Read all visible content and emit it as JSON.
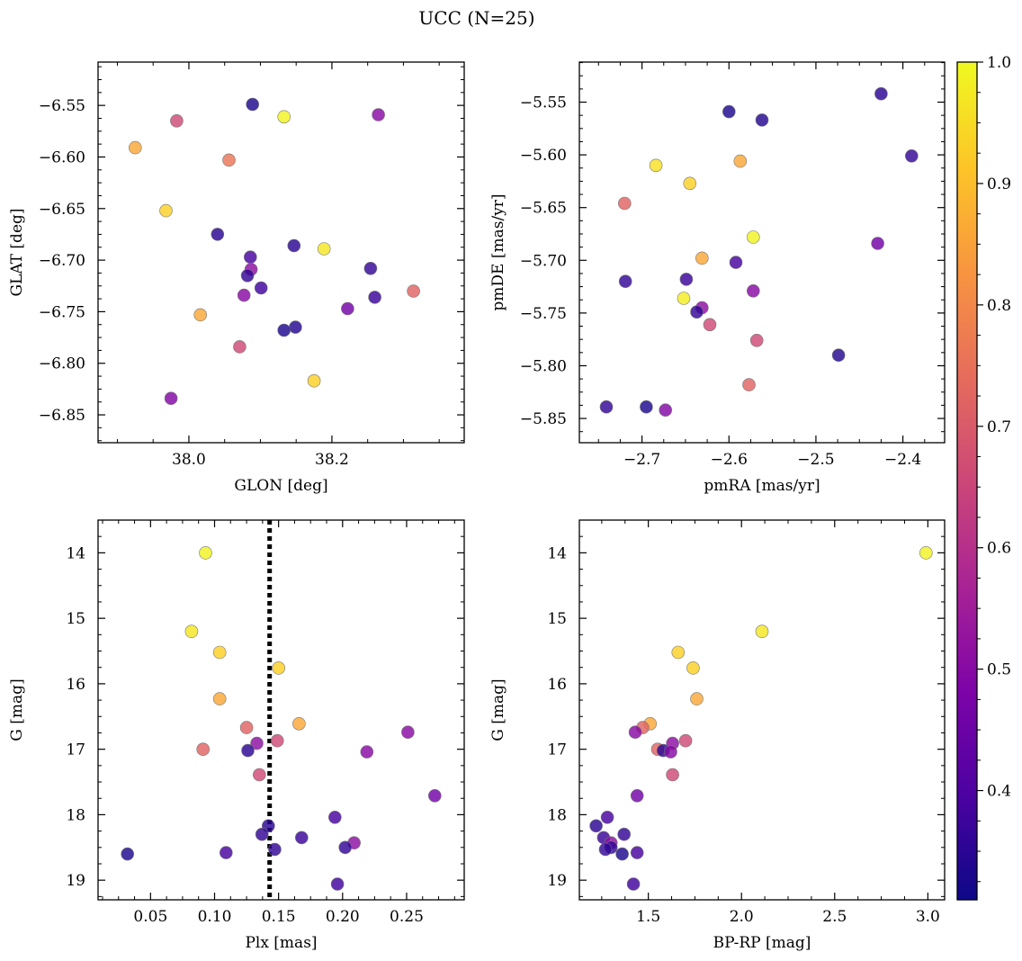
{
  "figure": {
    "title": "UCC (N=25)"
  },
  "colorbar": {
    "colormap": "plasma",
    "min": 0.31,
    "max": 1.0,
    "ticks": [
      0.4,
      0.5,
      0.6,
      0.7,
      0.8,
      0.9,
      1.0
    ],
    "tick_labels": [
      "0.4",
      "0.5",
      "0.6",
      "0.7",
      "0.8",
      "0.9",
      "1.0"
    ]
  },
  "chart_data": [
    {
      "type": "scatter",
      "xlabel": "GLON [deg]",
      "ylabel": "GLAT [deg]",
      "xlim": [
        37.873,
        38.385
      ],
      "ylim": [
        -6.877,
        -6.508
      ],
      "xticks": [
        38.0,
        38.2
      ],
      "xtick_labels": [
        "38.0",
        "38.2"
      ],
      "yticks": [
        -6.55,
        -6.6,
        -6.65,
        -6.7,
        -6.75,
        -6.8,
        -6.85
      ],
      "ytick_labels": [
        "−6.55",
        "−6.60",
        "−6.65",
        "−6.70",
        "−6.75",
        "−6.80",
        "−6.85"
      ],
      "points": [
        {
          "x": 38.089,
          "y": -6.549,
          "c": 0.33
        },
        {
          "x": 38.133,
          "y": -6.561,
          "c": 0.99
        },
        {
          "x": 38.265,
          "y": -6.559,
          "c": 0.5
        },
        {
          "x": 37.983,
          "y": -6.565,
          "c": 0.66
        },
        {
          "x": 37.925,
          "y": -6.591,
          "c": 0.86
        },
        {
          "x": 38.056,
          "y": -6.603,
          "c": 0.76
        },
        {
          "x": 37.968,
          "y": -6.652,
          "c": 0.93
        },
        {
          "x": 38.04,
          "y": -6.675,
          "c": 0.35
        },
        {
          "x": 38.147,
          "y": -6.686,
          "c": 0.35
        },
        {
          "x": 38.189,
          "y": -6.689,
          "c": 0.97
        },
        {
          "x": 38.086,
          "y": -6.697,
          "c": 0.39
        },
        {
          "x": 38.087,
          "y": -6.709,
          "c": 0.51
        },
        {
          "x": 38.254,
          "y": -6.708,
          "c": 0.36
        },
        {
          "x": 38.082,
          "y": -6.715,
          "c": 0.36
        },
        {
          "x": 38.101,
          "y": -6.727,
          "c": 0.38
        },
        {
          "x": 38.077,
          "y": -6.734,
          "c": 0.5
        },
        {
          "x": 38.26,
          "y": -6.736,
          "c": 0.37
        },
        {
          "x": 38.314,
          "y": -6.73,
          "c": 0.72
        },
        {
          "x": 38.222,
          "y": -6.747,
          "c": 0.46
        },
        {
          "x": 38.016,
          "y": -6.753,
          "c": 0.86
        },
        {
          "x": 38.149,
          "y": -6.765,
          "c": 0.34
        },
        {
          "x": 38.133,
          "y": -6.768,
          "c": 0.33
        },
        {
          "x": 38.071,
          "y": -6.784,
          "c": 0.66
        },
        {
          "x": 38.175,
          "y": -6.817,
          "c": 0.93
        },
        {
          "x": 37.975,
          "y": -6.834,
          "c": 0.49
        }
      ]
    },
    {
      "type": "scatter",
      "xlabel": "pmRA [mas/yr]",
      "ylabel": "pmDE [mas/yr]",
      "xlim": [
        -2.772,
        -2.352
      ],
      "ylim": [
        -5.873,
        -5.512
      ],
      "xticks": [
        -2.7,
        -2.6,
        -2.5,
        -2.4
      ],
      "xtick_labels": [
        "−2.7",
        "−2.6",
        "−2.5",
        "−2.4"
      ],
      "yticks": [
        -5.55,
        -5.6,
        -5.65,
        -5.7,
        -5.75,
        -5.8,
        -5.85
      ],
      "ytick_labels": [
        "−5.55",
        "−5.60",
        "−5.65",
        "−5.70",
        "−5.75",
        "−5.80",
        "−5.85"
      ],
      "points": [
        {
          "x": -2.425,
          "y": -5.542,
          "c": 0.35
        },
        {
          "x": -2.6,
          "y": -5.559,
          "c": 0.33
        },
        {
          "x": -2.562,
          "y": -5.567,
          "c": 0.34
        },
        {
          "x": -2.39,
          "y": -5.601,
          "c": 0.36
        },
        {
          "x": -2.684,
          "y": -5.61,
          "c": 0.96
        },
        {
          "x": -2.587,
          "y": -5.606,
          "c": 0.86
        },
        {
          "x": -2.645,
          "y": -5.627,
          "c": 0.93
        },
        {
          "x": -2.72,
          "y": -5.646,
          "c": 0.72
        },
        {
          "x": -2.572,
          "y": -5.678,
          "c": 0.99
        },
        {
          "x": -2.429,
          "y": -5.684,
          "c": 0.46
        },
        {
          "x": -2.631,
          "y": -5.698,
          "c": 0.86
        },
        {
          "x": -2.592,
          "y": -5.702,
          "c": 0.39
        },
        {
          "x": -2.649,
          "y": -5.718,
          "c": 0.37
        },
        {
          "x": -2.719,
          "y": -5.72,
          "c": 0.36
        },
        {
          "x": -2.572,
          "y": -5.729,
          "c": 0.5
        },
        {
          "x": -2.652,
          "y": -5.736,
          "c": 0.98
        },
        {
          "x": -2.631,
          "y": -5.745,
          "c": 0.51
        },
        {
          "x": -2.637,
          "y": -5.749,
          "c": 0.36
        },
        {
          "x": -2.622,
          "y": -5.761,
          "c": 0.66
        },
        {
          "x": -2.568,
          "y": -5.776,
          "c": 0.66
        },
        {
          "x": -2.474,
          "y": -5.79,
          "c": 0.34
        },
        {
          "x": -2.577,
          "y": -5.818,
          "c": 0.72
        },
        {
          "x": -2.741,
          "y": -5.839,
          "c": 0.36
        },
        {
          "x": -2.695,
          "y": -5.839,
          "c": 0.33
        },
        {
          "x": -2.673,
          "y": -5.842,
          "c": 0.49
        }
      ]
    },
    {
      "type": "scatter",
      "xlabel": "Plx [mas]",
      "ylabel": "G [mag]",
      "xlim": [
        0.009,
        0.295
      ],
      "ylim": [
        19.3,
        13.5
      ],
      "xticks": [
        0.05,
        0.1,
        0.15,
        0.2,
        0.25
      ],
      "xtick_labels": [
        "0.05",
        "0.10",
        "0.15",
        "0.20",
        "0.25"
      ],
      "yticks": [
        14,
        15,
        16,
        17,
        18,
        19
      ],
      "ytick_labels": [
        "14",
        "15",
        "16",
        "17",
        "18",
        "19"
      ],
      "vline": 0.143,
      "points": [
        {
          "x": 0.093,
          "y": 14.0,
          "c": 0.99
        },
        {
          "x": 0.082,
          "y": 15.2,
          "c": 0.97
        },
        {
          "x": 0.104,
          "y": 15.52,
          "c": 0.93
        },
        {
          "x": 0.15,
          "y": 15.76,
          "c": 0.93
        },
        {
          "x": 0.104,
          "y": 16.23,
          "c": 0.86
        },
        {
          "x": 0.166,
          "y": 16.61,
          "c": 0.86
        },
        {
          "x": 0.125,
          "y": 16.67,
          "c": 0.72
        },
        {
          "x": 0.251,
          "y": 16.74,
          "c": 0.5
        },
        {
          "x": 0.149,
          "y": 16.87,
          "c": 0.66
        },
        {
          "x": 0.133,
          "y": 16.91,
          "c": 0.51
        },
        {
          "x": 0.091,
          "y": 17.0,
          "c": 0.72
        },
        {
          "x": 0.126,
          "y": 17.02,
          "c": 0.35
        },
        {
          "x": 0.219,
          "y": 17.04,
          "c": 0.5
        },
        {
          "x": 0.135,
          "y": 17.39,
          "c": 0.66
        },
        {
          "x": 0.272,
          "y": 17.71,
          "c": 0.46
        },
        {
          "x": 0.194,
          "y": 18.04,
          "c": 0.39
        },
        {
          "x": 0.142,
          "y": 18.17,
          "c": 0.35
        },
        {
          "x": 0.137,
          "y": 18.3,
          "c": 0.36
        },
        {
          "x": 0.168,
          "y": 18.35,
          "c": 0.37
        },
        {
          "x": 0.209,
          "y": 18.43,
          "c": 0.51
        },
        {
          "x": 0.202,
          "y": 18.5,
          "c": 0.36
        },
        {
          "x": 0.147,
          "y": 18.53,
          "c": 0.36
        },
        {
          "x": 0.109,
          "y": 18.58,
          "c": 0.39
        },
        {
          "x": 0.032,
          "y": 18.6,
          "c": 0.33
        },
        {
          "x": 0.196,
          "y": 19.06,
          "c": 0.38
        }
      ]
    },
    {
      "type": "scatter",
      "xlabel": "BP-RP [mag]",
      "ylabel": "G [mag]",
      "xlim": [
        1.13,
        3.09
      ],
      "ylim": [
        19.3,
        13.5
      ],
      "xticks": [
        1.5,
        2.0,
        2.5,
        3.0
      ],
      "xtick_labels": [
        "1.5",
        "2.0",
        "2.5",
        "3.0"
      ],
      "yticks": [
        14,
        15,
        16,
        17,
        18,
        19
      ],
      "ytick_labels": [
        "14",
        "15",
        "16",
        "17",
        "18",
        "19"
      ],
      "points": [
        {
          "x": 2.99,
          "y": 14.0,
          "c": 0.99
        },
        {
          "x": 2.11,
          "y": 15.2,
          "c": 0.97
        },
        {
          "x": 1.66,
          "y": 15.52,
          "c": 0.93
        },
        {
          "x": 1.74,
          "y": 15.76,
          "c": 0.93
        },
        {
          "x": 1.76,
          "y": 16.23,
          "c": 0.86
        },
        {
          "x": 1.51,
          "y": 16.61,
          "c": 0.86
        },
        {
          "x": 1.47,
          "y": 16.67,
          "c": 0.72
        },
        {
          "x": 1.43,
          "y": 16.74,
          "c": 0.5
        },
        {
          "x": 1.7,
          "y": 16.87,
          "c": 0.66
        },
        {
          "x": 1.63,
          "y": 16.91,
          "c": 0.51
        },
        {
          "x": 1.55,
          "y": 17.0,
          "c": 0.72
        },
        {
          "x": 1.58,
          "y": 17.02,
          "c": 0.35
        },
        {
          "x": 1.62,
          "y": 17.04,
          "c": 0.5
        },
        {
          "x": 1.63,
          "y": 17.39,
          "c": 0.66
        },
        {
          "x": 1.44,
          "y": 17.71,
          "c": 0.46
        },
        {
          "x": 1.28,
          "y": 18.04,
          "c": 0.39
        },
        {
          "x": 1.22,
          "y": 18.17,
          "c": 0.35
        },
        {
          "x": 1.37,
          "y": 18.3,
          "c": 0.36
        },
        {
          "x": 1.26,
          "y": 18.35,
          "c": 0.37
        },
        {
          "x": 1.3,
          "y": 18.43,
          "c": 0.51
        },
        {
          "x": 1.3,
          "y": 18.5,
          "c": 0.36
        },
        {
          "x": 1.27,
          "y": 18.53,
          "c": 0.36
        },
        {
          "x": 1.44,
          "y": 18.58,
          "c": 0.39
        },
        {
          "x": 1.36,
          "y": 18.6,
          "c": 0.33
        },
        {
          "x": 1.42,
          "y": 19.06,
          "c": 0.38
        }
      ]
    }
  ]
}
